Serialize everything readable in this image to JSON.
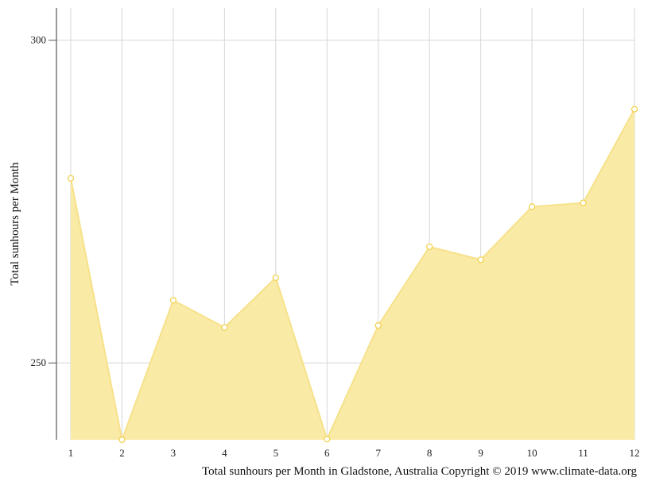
{
  "chart_data": {
    "type": "area",
    "x": [
      1,
      2,
      3,
      4,
      5,
      6,
      7,
      8,
      9,
      10,
      11,
      12
    ],
    "series": [
      {
        "values": [
          278.6,
          238.1,
          259.7,
          255.5,
          263.2,
          238.2,
          255.8,
          268.0,
          266.0,
          274.2,
          274.8,
          289.3
        ]
      }
    ],
    "ylabel": "Total sunhours per Month",
    "caption": "Total sunhours per Month in Gladstone, Australia Copyright © 2019 www.climate-data.org",
    "y_ticks": [
      250,
      300
    ],
    "ylim": [
      238.1,
      305
    ],
    "grid": true,
    "colors": {
      "fill": "#f9eaa6",
      "line": "#f7e18a",
      "marker_stroke": "#f1d24f",
      "grid": "#d7d7d7"
    }
  }
}
